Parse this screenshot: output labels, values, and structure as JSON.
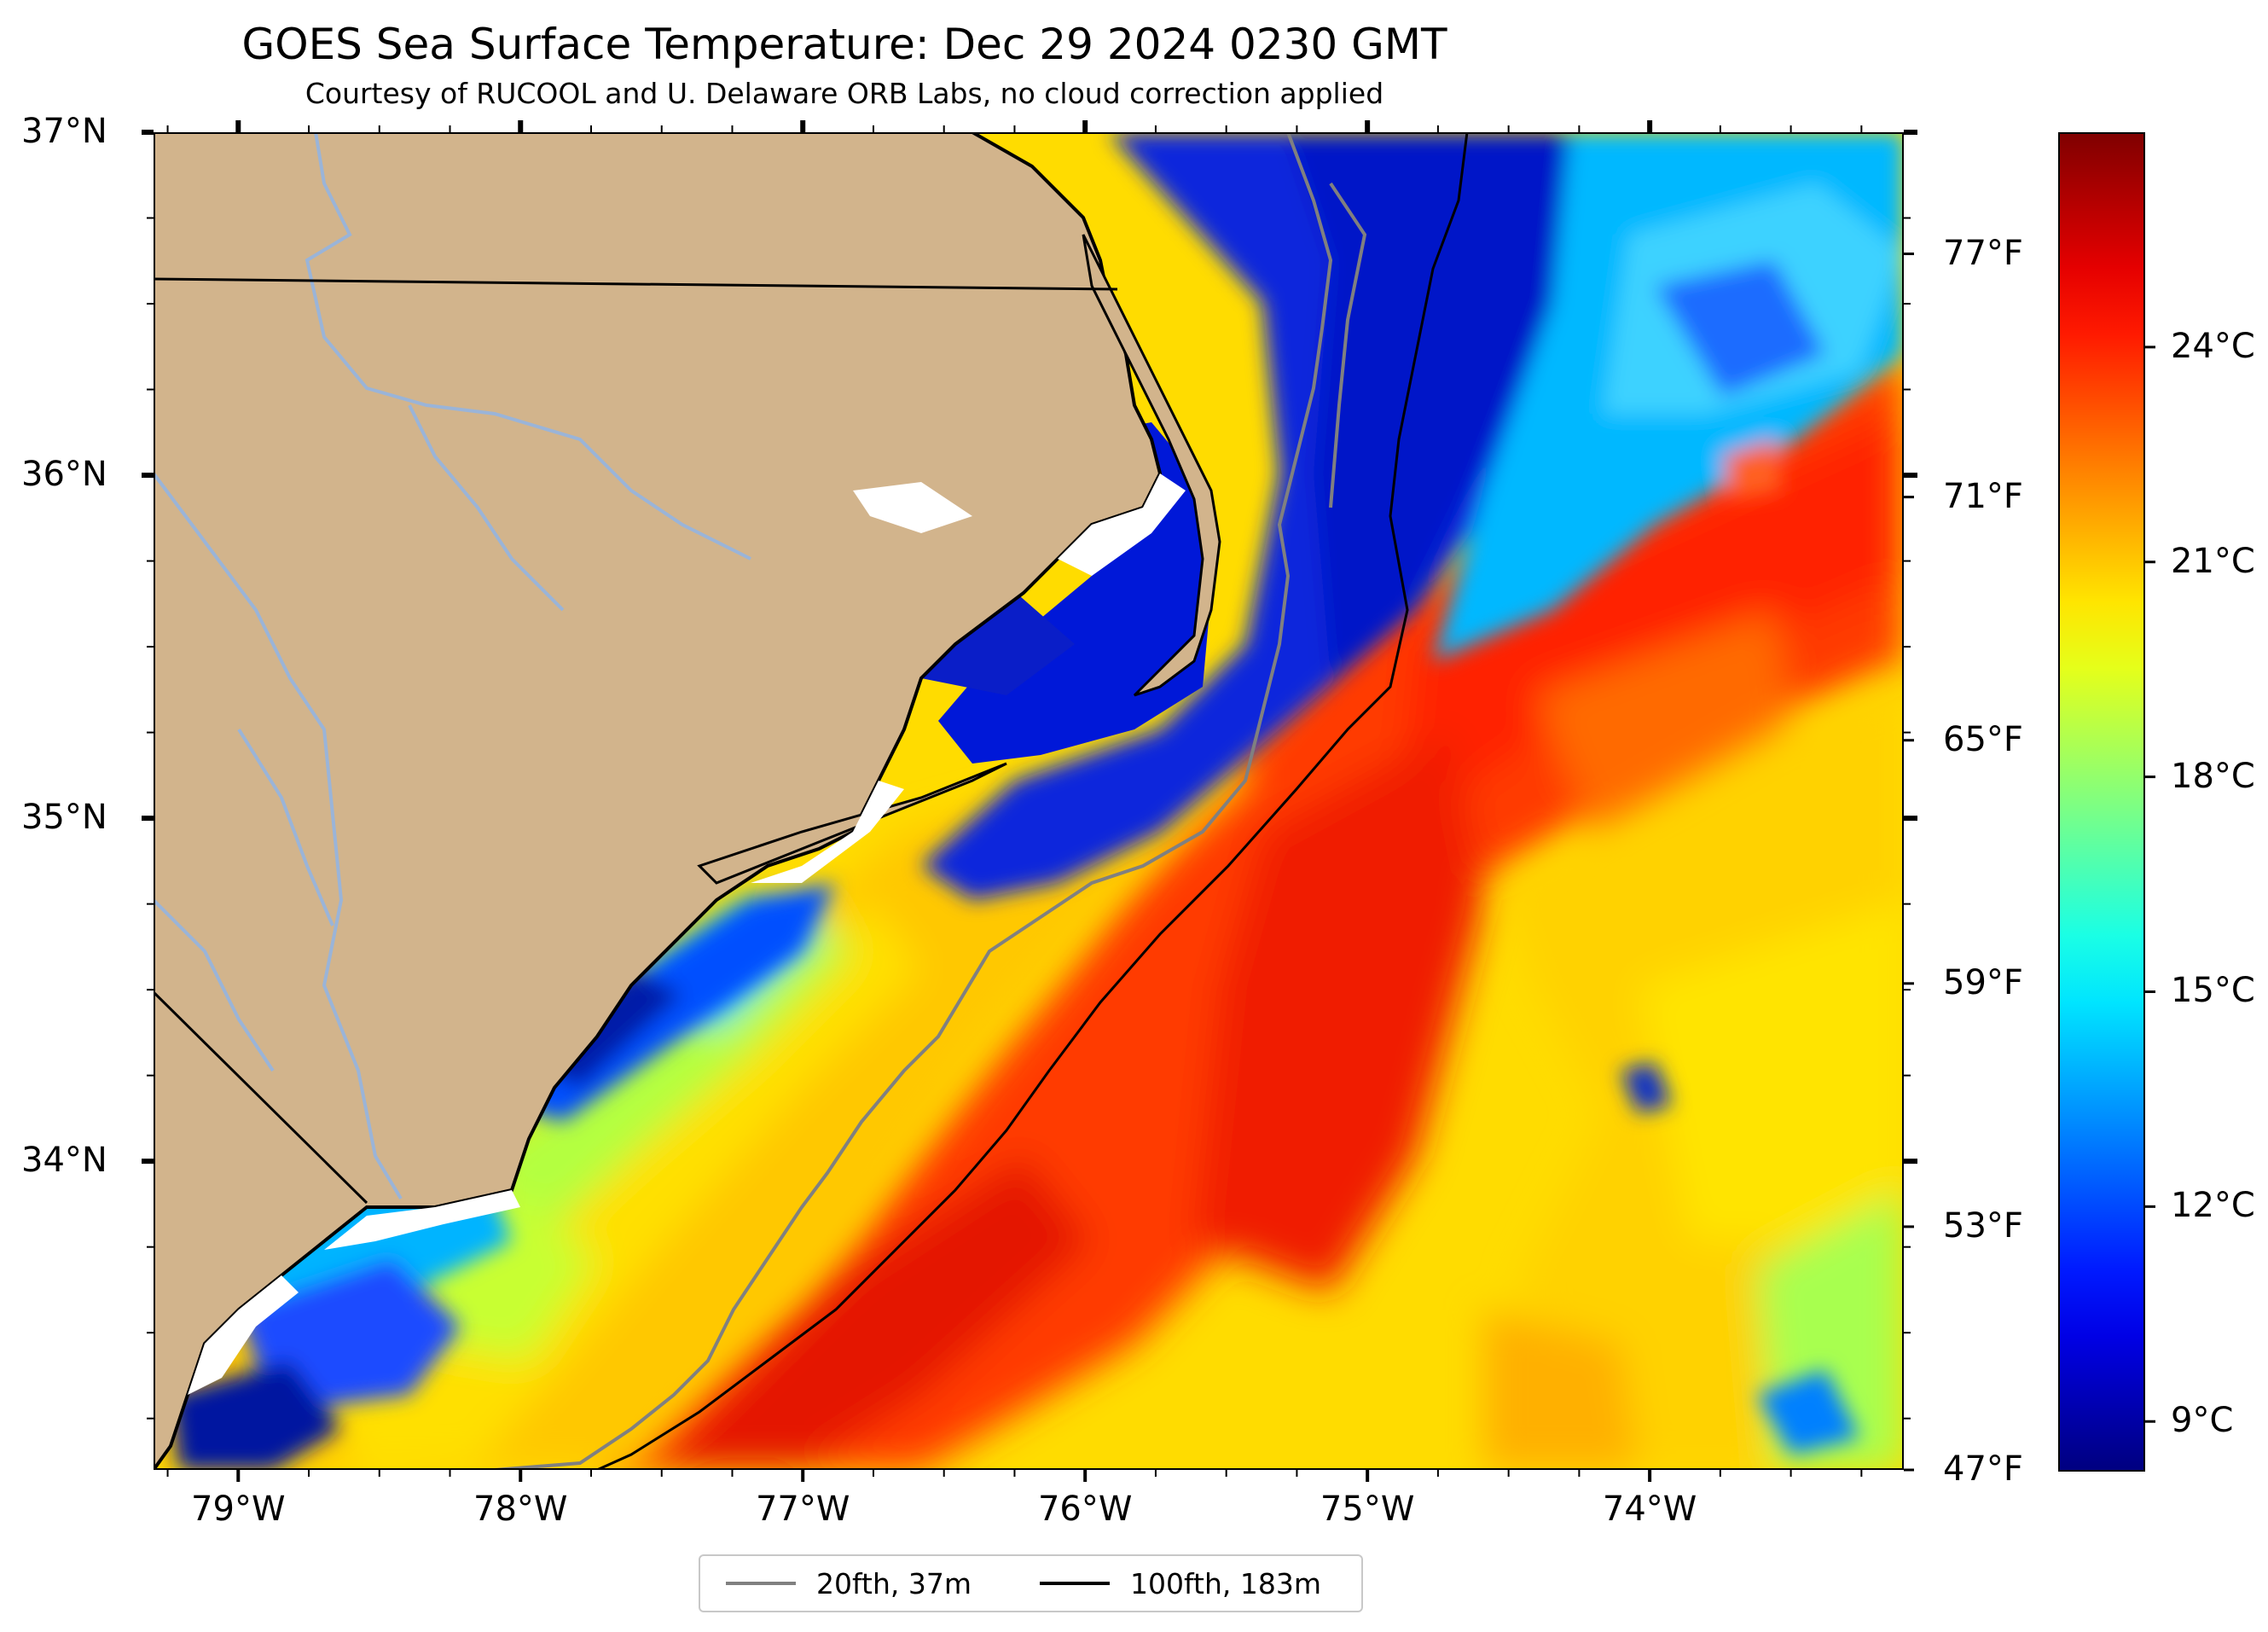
{
  "header": {
    "title": "GOES Sea Surface Temperature: Dec 29 2024 0230 GMT",
    "subtitle": "Courtesy of RUCOOL and U. Delaware ORB Labs, no cloud correction applied"
  },
  "map": {
    "lon_range": [
      -79.3,
      -73.1
    ],
    "lat_range": [
      33.1,
      37.0
    ],
    "x_ticks": [
      {
        "lon": -79,
        "label": "79°W"
      },
      {
        "lon": -78,
        "label": "78°W"
      },
      {
        "lon": -77,
        "label": "77°W"
      },
      {
        "lon": -76,
        "label": "76°W"
      },
      {
        "lon": -75,
        "label": "75°W"
      },
      {
        "lon": -74,
        "label": "74°W"
      }
    ],
    "y_ticks": [
      {
        "lat": 37,
        "label": "37°N"
      },
      {
        "lat": 36,
        "label": "36°N"
      },
      {
        "lat": 35,
        "label": "35°N"
      },
      {
        "lat": 34,
        "label": "34°N"
      }
    ],
    "fahrenheit_ticks": [
      {
        "f": 77,
        "label": "77°F"
      },
      {
        "f": 71,
        "label": "71°F"
      },
      {
        "f": 65,
        "label": "65°F"
      },
      {
        "f": 59,
        "label": "59°F"
      },
      {
        "f": 53,
        "label": "53°F"
      },
      {
        "f": 47,
        "label": "47°F"
      }
    ],
    "colors": {
      "land": "#d2b48c",
      "rivers": "#9ab4d8",
      "contour_20fth": "#808080",
      "contour_100fth": "#000000"
    }
  },
  "colorbar": {
    "unit": "°C",
    "range_c": [
      8.3,
      27.0
    ],
    "ticks": [
      {
        "c": 24,
        "label": "24°C"
      },
      {
        "c": 21,
        "label": "21°C"
      },
      {
        "c": 18,
        "label": "18°C"
      },
      {
        "c": 15,
        "label": "15°C"
      },
      {
        "c": 12,
        "label": "12°C"
      },
      {
        "c": 9,
        "label": "9°C"
      }
    ],
    "colormap": "jet"
  },
  "legend": {
    "entries": [
      {
        "label": "20fth, 37m",
        "color": "#808080"
      },
      {
        "label": "100fth, 183m",
        "color": "#000000"
      }
    ]
  }
}
